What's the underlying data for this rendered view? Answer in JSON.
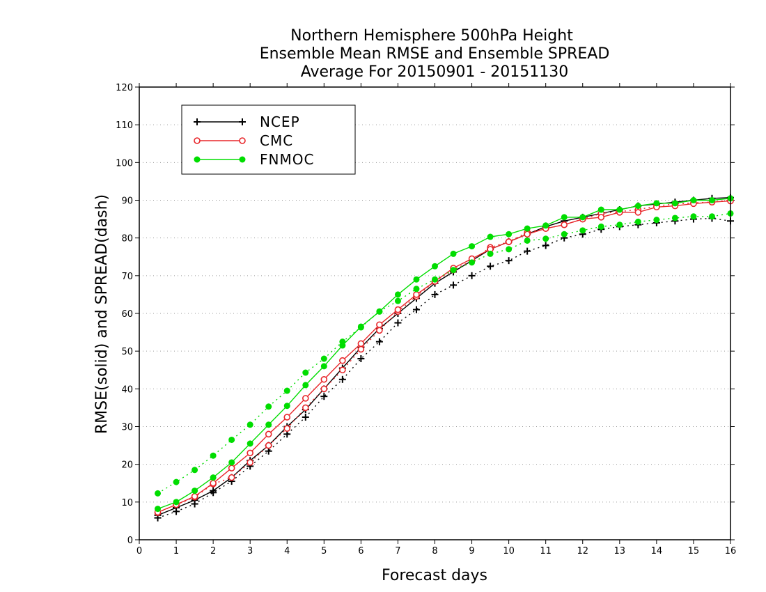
{
  "chart_data": {
    "type": "line",
    "title": [
      "Northern Hemisphere 500hPa Height",
      "Ensemble Mean RMSE and Ensemble SPREAD",
      "Average For 20150901 - 20151130"
    ],
    "xlabel": "Forecast days",
    "ylabel": "RMSE(solid) and SPREAD(dash)",
    "xlim": [
      0,
      16
    ],
    "ylim": [
      0,
      120
    ],
    "xticks": [
      0,
      1,
      2,
      3,
      4,
      5,
      6,
      7,
      8,
      9,
      10,
      11,
      12,
      13,
      14,
      15,
      16
    ],
    "yticks": [
      0,
      10,
      20,
      30,
      40,
      50,
      60,
      70,
      80,
      90,
      100,
      110,
      120
    ],
    "grid": true,
    "legend_position": "top-left",
    "x": [
      0.5,
      1,
      1.5,
      2,
      2.5,
      3,
      3.5,
      4,
      4.5,
      5,
      5.5,
      6,
      6.5,
      7,
      7.5,
      8,
      8.5,
      9,
      9.5,
      10,
      10.5,
      11,
      11.5,
      12,
      12.5,
      13,
      13.5,
      14,
      14.5,
      15,
      15.5,
      16
    ],
    "series": [
      {
        "name": "NCEP",
        "color": "#000000",
        "marker": "plus",
        "rmse": [
          6.5,
          8.5,
          10.5,
          13,
          16.5,
          21,
          25,
          30,
          34.5,
          40,
          45.5,
          51,
          56,
          60,
          64,
          68,
          71,
          74,
          77,
          79,
          81,
          83,
          84.5,
          85.5,
          86.5,
          87.5,
          88.5,
          89,
          89.5,
          90,
          90.5,
          90.7
        ],
        "spread": [
          5.8,
          7.5,
          9.5,
          12.5,
          15.5,
          19.5,
          23.5,
          28,
          32.5,
          38,
          42.5,
          48,
          52.5,
          57.5,
          61,
          65,
          67.5,
          70,
          72.5,
          74,
          76.5,
          78,
          80,
          81,
          82.3,
          83,
          83.5,
          84,
          84.5,
          85,
          85.2,
          84.5
        ]
      },
      {
        "name": "CMC",
        "color": "#e8262a",
        "marker": "open-circle",
        "rmse": [
          7.3,
          9.3,
          11.5,
          15,
          19,
          23,
          28,
          32.5,
          37.5,
          42.5,
          47.5,
          52,
          57,
          61,
          65,
          68.5,
          72,
          74.5,
          77,
          79,
          81,
          82.5,
          83.5,
          85,
          85.5,
          86.8,
          86.8,
          88.2,
          88.5,
          89.1,
          89.5,
          89.8
        ],
        "spread": [
          7.2,
          9.3,
          11.3,
          14.8,
          16.5,
          20.5,
          25,
          29.5,
          35,
          40,
          45,
          50.5,
          55.5,
          60.5,
          64.5,
          68.5,
          71.5,
          74,
          77.5,
          79,
          81.5,
          82.5,
          83.5,
          85,
          86.5,
          87,
          87.5,
          88.5,
          89,
          89.3,
          89.5,
          90
        ]
      },
      {
        "name": "FNMOC",
        "color": "#00dd00",
        "marker": "filled-circle",
        "rmse": [
          8.2,
          10,
          13,
          16.5,
          20.5,
          25.5,
          30.5,
          35.5,
          41,
          46,
          51.5,
          56.5,
          60.5,
          65,
          69,
          72.5,
          75.8,
          77.8,
          80.3,
          81,
          82.5,
          83.3,
          85.5,
          85.5,
          87.5,
          87.5,
          88.5,
          89.2,
          89.2,
          90,
          90,
          90.5
        ],
        "spread": [
          12.3,
          15.3,
          18.5,
          22.3,
          26.5,
          30.5,
          35.3,
          39.5,
          44.3,
          48,
          52.5,
          56.3,
          60.5,
          63.3,
          66.5,
          69,
          71.5,
          73.5,
          75.8,
          77,
          79.3,
          79.8,
          81,
          82,
          83,
          83.5,
          84.3,
          84.8,
          85.3,
          85.7,
          85.7,
          86.5
        ]
      }
    ]
  }
}
